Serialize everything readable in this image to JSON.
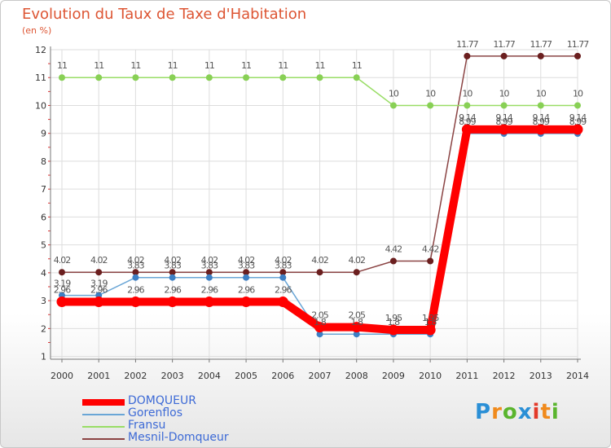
{
  "header": {
    "title": "Evolution du Taux de Taxe d'Habitation",
    "subtitle": "(en %)"
  },
  "logo": {
    "letters": [
      "P",
      "r",
      "o",
      "x",
      "i",
      "t",
      "i"
    ],
    "colors": [
      "#2a8fd6",
      "#f08a1c",
      "#5ab52e",
      "#2a8fd6",
      "#e33a2a",
      "#f08a1c",
      "#5ab52e"
    ]
  },
  "chart_data": {
    "type": "line",
    "title": "Evolution du Taux de Taxe d'Habitation",
    "subtitle": "(en %)",
    "xlabel": "",
    "ylabel": "",
    "x": [
      "2000",
      "2001",
      "2002",
      "2003",
      "2004",
      "2005",
      "2006",
      "2007",
      "2008",
      "2009",
      "2010",
      "2011",
      "2012",
      "2013",
      "2014"
    ],
    "yticks": [
      1,
      2,
      3,
      4,
      5,
      6,
      7,
      8,
      9,
      10,
      11,
      12
    ],
    "ylim": [
      0.9,
      12
    ],
    "grid": true,
    "legend": "bottom-left",
    "series": [
      {
        "name": "DOMQUEUR",
        "color": "#ff0000",
        "marker_color": "#ff0000",
        "values": [
          2.96,
          2.96,
          2.96,
          2.96,
          2.96,
          2.96,
          2.96,
          2.05,
          2.05,
          1.95,
          1.95,
          9.14,
          9.14,
          9.14,
          9.14
        ],
        "labels": [
          "2.96",
          "2.96",
          "2.96",
          "2.96",
          "2.96",
          "2.96",
          "2.96",
          "2.05",
          "2.05",
          "1.95",
          "1.95",
          "9.14",
          "9.14",
          "9.14",
          "9.14"
        ]
      },
      {
        "name": "Gorenflos",
        "color": "#6aa6d6",
        "marker_color": "#3d7fc4",
        "values": [
          3.19,
          3.19,
          3.83,
          3.83,
          3.83,
          3.83,
          3.83,
          1.8,
          1.8,
          1.8,
          1.8,
          8.99,
          8.99,
          8.99,
          8.99
        ],
        "labels": [
          "3.19",
          "3.19",
          "3.83",
          "3.83",
          "3.83",
          "3.83",
          "3.83",
          "1.8",
          "1.8",
          "1.8",
          "1.8",
          "8.99",
          "8.99",
          "8.99",
          "8.99"
        ]
      },
      {
        "name": "Fransu",
        "color": "#99dd66",
        "marker_color": "#88d055",
        "values": [
          11,
          11,
          11,
          11,
          11,
          11,
          11,
          11,
          11,
          10,
          10,
          10,
          10,
          10,
          10
        ],
        "labels": [
          "11",
          "11",
          "11",
          "11",
          "11",
          "11",
          "11",
          "11",
          "11",
          "10",
          "10",
          "10",
          "10",
          "10",
          "10"
        ]
      },
      {
        "name": "Mesnil-Domqueur",
        "color": "#8b4444",
        "marker_color": "#6b1f1f",
        "values": [
          4.02,
          4.02,
          4.02,
          4.02,
          4.02,
          4.02,
          4.02,
          4.02,
          4.02,
          4.42,
          4.42,
          11.77,
          11.77,
          11.77,
          11.77
        ],
        "labels": [
          "4.02",
          "4.02",
          "4.02",
          "4.02",
          "4.02",
          "4.02",
          "4.02",
          "4.02",
          "4.02",
          "4.42",
          "4.42",
          "11.77",
          "11.77",
          "11.77",
          "11.77"
        ]
      }
    ]
  }
}
